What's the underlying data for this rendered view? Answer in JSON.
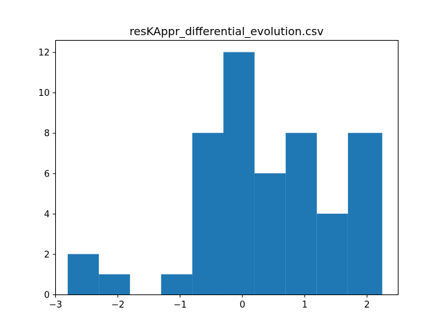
{
  "chart_data": {
    "type": "bar",
    "subtype": "histogram",
    "title": "resKAppr_differential_evolution.csv",
    "xlabel": "",
    "ylabel": "",
    "bin_edges": [
      -2.8,
      -2.3,
      -1.8,
      -1.3,
      -0.8,
      -0.3,
      0.2,
      0.7,
      1.2,
      1.7,
      2.25
    ],
    "counts": [
      2,
      1,
      0,
      1,
      8,
      12,
      6,
      8,
      4,
      8
    ],
    "xlim": [
      -3.0,
      2.5
    ],
    "ylim": [
      0,
      12.6
    ],
    "xticks": [
      -3,
      -2,
      -1,
      0,
      1,
      2
    ],
    "xtick_labels": [
      "−3",
      "−2",
      "−1",
      "0",
      "1",
      "2"
    ],
    "yticks": [
      0,
      2,
      4,
      6,
      8,
      10,
      12
    ],
    "ytick_labels": [
      "0",
      "2",
      "4",
      "6",
      "8",
      "10",
      "12"
    ],
    "bar_color": "#1f77b4",
    "grid": false,
    "legend": "none"
  }
}
